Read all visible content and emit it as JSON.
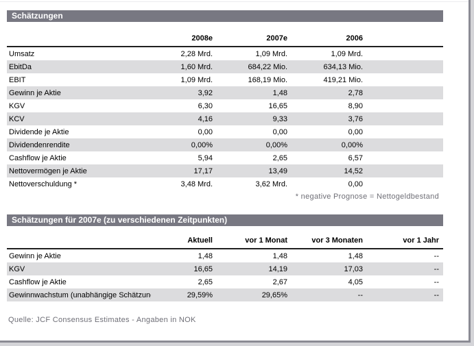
{
  "colors": {
    "header_bar_bg": "#787882",
    "row_alt_bg": "#dcdcde",
    "muted_text": "#6e6e76",
    "frame_border": "#8b8b94"
  },
  "table1": {
    "title": "Schätzungen",
    "columns": [
      "2008e",
      "2007e",
      "2006"
    ],
    "rows": [
      {
        "label": "Umsatz",
        "values": [
          "2,28 Mrd.",
          "1,09 Mrd.",
          "1,09 Mrd."
        ]
      },
      {
        "label": "EbitDa",
        "values": [
          "1,60 Mrd.",
          "684,22 Mio.",
          "634,13 Mio."
        ]
      },
      {
        "label": "EBIT",
        "values": [
          "1,09 Mrd.",
          "168,19 Mio.",
          "419,21 Mio."
        ]
      },
      {
        "label": "Gewinn je Aktie",
        "values": [
          "3,92",
          "1,48",
          "2,78"
        ]
      },
      {
        "label": "KGV",
        "values": [
          "6,30",
          "16,65",
          "8,90"
        ]
      },
      {
        "label": "KCV",
        "values": [
          "4,16",
          "9,33",
          "3,76"
        ]
      },
      {
        "label": "Dividende je Aktie",
        "values": [
          "0,00",
          "0,00",
          "0,00"
        ]
      },
      {
        "label": "Dividendenrendite",
        "values": [
          "0,00%",
          "0,00%",
          "0,00%"
        ]
      },
      {
        "label": "Cashflow je Aktie",
        "values": [
          "5,94",
          "2,65",
          "6,57"
        ]
      },
      {
        "label": "Nettovermögen je Aktie",
        "values": [
          "17,17",
          "13,49",
          "14,52"
        ]
      },
      {
        "label": "Nettoverschuldung *",
        "values": [
          "3,48 Mrd.",
          "3,62 Mrd.",
          "0,00"
        ]
      }
    ],
    "footnote": "* negative Prognose = Nettogeldbestand"
  },
  "table2": {
    "title": "Schätzungen für 2007e (zu verschiedenen Zeitpunkten)",
    "columns": [
      "Aktuell",
      "vor 1 Monat",
      "vor 3 Monaten",
      "vor 1 Jahr"
    ],
    "rows": [
      {
        "label": "Gewinn je Aktie",
        "values": [
          "1,48",
          "1,48",
          "1,48",
          "--"
        ]
      },
      {
        "label": "KGV",
        "values": [
          "16,65",
          "14,19",
          "17,03",
          "--"
        ]
      },
      {
        "label": "Cashflow je Aktie",
        "values": [
          "2,65",
          "2,67",
          "4,05",
          "--"
        ]
      },
      {
        "label": "Gewinnwachstum (unabhängige Schätzung)",
        "values": [
          "29,59%",
          "29,65%",
          "--",
          "--"
        ]
      }
    ]
  },
  "source_note": "Quelle: JCF Consensus Estimates - Angaben in NOK"
}
